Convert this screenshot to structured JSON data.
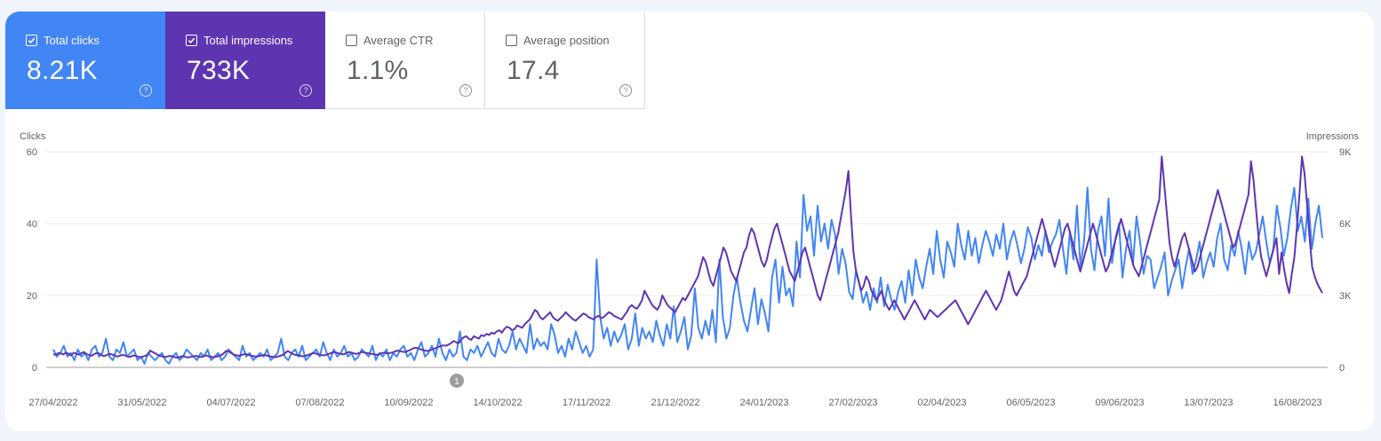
{
  "metrics": [
    {
      "label": "Total clicks",
      "value": "8.21K",
      "checked": true,
      "color": "#4285f4"
    },
    {
      "label": "Total impressions",
      "value": "733K",
      "checked": true,
      "color": "#5e35b1"
    },
    {
      "label": "Average CTR",
      "value": "1.1%",
      "checked": false,
      "color": "#ffffff"
    },
    {
      "label": "Average position",
      "value": "17.4",
      "checked": false,
      "color": "#ffffff"
    }
  ],
  "help_glyph": "?",
  "chart_data": {
    "type": "line",
    "ylabel_left": "Clicks",
    "ylabel_right": "Impressions",
    "y_left_ticks": [
      "0",
      "20",
      "40",
      "60"
    ],
    "y_left_range": [
      0,
      60
    ],
    "y_right_ticks": [
      "0",
      "3K",
      "6K",
      "9K"
    ],
    "y_right_range": [
      0,
      9000
    ],
    "x_ticks": [
      "27/04/2022",
      "31/05/2022",
      "04/07/2022",
      "07/08/2022",
      "10/09/2022",
      "14/10/2022",
      "17/11/2022",
      "21/12/2022",
      "24/01/2023",
      "27/02/2023",
      "02/04/2023",
      "06/05/2023",
      "09/06/2023",
      "13/07/2023",
      "16/08/2023"
    ],
    "annotation": {
      "label": "1",
      "near": "10/09/2022"
    },
    "grid": true,
    "series": [
      {
        "name": "Clicks",
        "axis": "left",
        "color": "#4285f4",
        "values": [
          5,
          3,
          4,
          6,
          3,
          4,
          2,
          5,
          3,
          4,
          2,
          5,
          6,
          3,
          4,
          8,
          3,
          2,
          5,
          4,
          7,
          3,
          4,
          5,
          2,
          3,
          1,
          4,
          3,
          2,
          3,
          4,
          2,
          1,
          3,
          4,
          2,
          3,
          5,
          4,
          3,
          2,
          4,
          3,
          5,
          2,
          3,
          4,
          2,
          3,
          5,
          4,
          3,
          2,
          6,
          3,
          4,
          2,
          3,
          4,
          3,
          5,
          2,
          3,
          4,
          8,
          3,
          2,
          4,
          5,
          3,
          6,
          2,
          3,
          4,
          5,
          3,
          7,
          4,
          2,
          5,
          3,
          4,
          6,
          3,
          4,
          2,
          3,
          5,
          4,
          3,
          6,
          2,
          4,
          3,
          5,
          2,
          4,
          3,
          5,
          6,
          3,
          4,
          2,
          5,
          7,
          3,
          4,
          6,
          3,
          8,
          4,
          2,
          5,
          3,
          4,
          10,
          3,
          2,
          5,
          4,
          6,
          3,
          5,
          7,
          4,
          3,
          8,
          5,
          4,
          6,
          10,
          5,
          8,
          6,
          4,
          12,
          5,
          8,
          6,
          7,
          5,
          12,
          9,
          4,
          6,
          3,
          8,
          5,
          10,
          7,
          4,
          6,
          3,
          5,
          30,
          14,
          8,
          11,
          6,
          10,
          7,
          9,
          12,
          5,
          8,
          15,
          6,
          11,
          8,
          10,
          7,
          13,
          9,
          6,
          12,
          8,
          17,
          7,
          10,
          14,
          5,
          9,
          22,
          11,
          8,
          13,
          9,
          16,
          7,
          30,
          14,
          8,
          11,
          20,
          25,
          18,
          13,
          10,
          16,
          22,
          12,
          19,
          15,
          10,
          25,
          30,
          18,
          28,
          20,
          22,
          17,
          35,
          25,
          48,
          38,
          42,
          31,
          45,
          35,
          40,
          33,
          41,
          37,
          26,
          33,
          29,
          21,
          19,
          27,
          23,
          18,
          21,
          16,
          22,
          18,
          25,
          17,
          23,
          19,
          16,
          21,
          24,
          18,
          27,
          20,
          30,
          25,
          22,
          28,
          33,
          26,
          38,
          30,
          25,
          35,
          32,
          28,
          40,
          34,
          30,
          38,
          31,
          36,
          29,
          34,
          38,
          35,
          31,
          37,
          33,
          40,
          30,
          35,
          38,
          34,
          29,
          33,
          39,
          36,
          30,
          34,
          31,
          38,
          32,
          35,
          37,
          41,
          33,
          26,
          38,
          30,
          45,
          28,
          35,
          50,
          33,
          27,
          38,
          42,
          31,
          47,
          29,
          36,
          40,
          25,
          33,
          38,
          29,
          42,
          35,
          26,
          31,
          30,
          22,
          25,
          28,
          32,
          20,
          24,
          27,
          30,
          22,
          28,
          33,
          26,
          30,
          35,
          25,
          29,
          32,
          28,
          36,
          40,
          30,
          27,
          34,
          31,
          38,
          33,
          26,
          35,
          30,
          32,
          37,
          42,
          35,
          29,
          33,
          45,
          39,
          31,
          36,
          44,
          50,
          38,
          42,
          35,
          47,
          33,
          40,
          45,
          36
        ]
      },
      {
        "name": "Impressions",
        "axis": "right",
        "color": "#5e35b1",
        "values": [
          550,
          520,
          600,
          580,
          540,
          620,
          560,
          500,
          610,
          570,
          530,
          590,
          640,
          560,
          520,
          480,
          550,
          600,
          580,
          500,
          470,
          520,
          560,
          540,
          500,
          450,
          480,
          520,
          500,
          460,
          430,
          480,
          500,
          460,
          420,
          440,
          480,
          520,
          700,
          640,
          580,
          520,
          480,
          450,
          430,
          460,
          480,
          440,
          420,
          400,
          450,
          470,
          430,
          410,
          440,
          460,
          480,
          450,
          430,
          470,
          500,
          460,
          440,
          420,
          450,
          480,
          520,
          600,
          700,
          650,
          580,
          520,
          500,
          480,
          520,
          560,
          540,
          500,
          480,
          460,
          450,
          480,
          500,
          520,
          480,
          460,
          440,
          420,
          450,
          480,
          520,
          600,
          680,
          620,
          560,
          520,
          500,
          480,
          460,
          480,
          520,
          560,
          600,
          580,
          540,
          520,
          500,
          520,
          560,
          600,
          640,
          620,
          580,
          560,
          540,
          600,
          640,
          620,
          580,
          560,
          600,
          640,
          620,
          600,
          580,
          560,
          540,
          520,
          560,
          600,
          620,
          580,
          600,
          620,
          660,
          700,
          680,
          650,
          640,
          680,
          720,
          780,
          820,
          800,
          760,
          720,
          700,
          680,
          720,
          760,
          800,
          850,
          880,
          920,
          900,
          950,
          1000,
          1100,
          1050,
          1000,
          1150,
          1250,
          1300,
          1200,
          1150,
          1300,
          1250,
          1200,
          1350,
          1300,
          1400,
          1350,
          1450,
          1400,
          1500,
          1550,
          1450,
          1600,
          1700,
          1650,
          1550,
          1600,
          1750,
          1700,
          1650,
          1800,
          1900,
          2000,
          2200,
          2400,
          2300,
          2100,
          2000,
          2100,
          2200,
          2300,
          2100,
          2000,
          1950,
          2050,
          2150,
          2300,
          2200,
          2100,
          2000,
          1950,
          2050,
          2150,
          2250,
          2200,
          2100,
          2050,
          2000,
          2100,
          2150,
          2050,
          2100,
          2200,
          2300,
          2250,
          2150,
          2100,
          2050,
          2000,
          2150,
          2300,
          2500,
          2600,
          2500,
          2450,
          2600,
          2800,
          3200,
          3000,
          2800,
          2600,
          2500,
          2400,
          2600,
          3000,
          2800,
          2600,
          2500,
          2400,
          2300,
          2500,
          2700,
          2900,
          2800,
          3000,
          3200,
          3400,
          3600,
          3800,
          4200,
          4600,
          4400,
          4000,
          3600,
          3400,
          3800,
          4200,
          4600,
          5000,
          4800,
          4400,
          4000,
          3800,
          3600,
          4000,
          4400,
          4800,
          5000,
          5500,
          5800,
          5600,
          5200,
          4800,
          4400,
          4200,
          4500,
          5000,
          5400,
          5800,
          6000,
          5600,
          5200,
          4800,
          4400,
          4000,
          3800,
          3600,
          4000,
          4400,
          4800,
          5000,
          4600,
          4200,
          3800,
          3400,
          3000,
          2800,
          3200,
          3600,
          4000,
          4400,
          4800,
          5200,
          5600,
          6200,
          6800,
          7400,
          8200,
          6400,
          4800,
          4000,
          3600,
          3200,
          3400,
          3800,
          3600,
          3200,
          3000,
          2800,
          3000,
          3200,
          2800,
          2600,
          2400,
          2600,
          2800,
          2600,
          2400,
          2200,
          2000,
          2200,
          2400,
          2600,
          2800,
          2600,
          2400,
          2200,
          2000,
          2200,
          2400,
          2300,
          2200,
          2100,
          2200,
          2300,
          2400,
          2500,
          2600,
          2700,
          2800,
          2600,
          2400,
          2200,
          2000,
          1800,
          2000,
          2200,
          2400,
          2600,
          2800,
          3000,
          3200,
          3000,
          2800,
          2600,
          2400,
          2600,
          2800,
          3200,
          3600,
          4000,
          3600,
          3200,
          3000,
          3200,
          3400,
          3600,
          3800,
          4200,
          4600,
          5000,
          5400,
          5800,
          6200,
          5800,
          5400,
          5000,
          4600,
          4200,
          4600,
          5000,
          5400,
          5800,
          6000,
          5600,
          5200,
          4800,
          4400,
          4000,
          4400,
          4800,
          5200,
          5600,
          6000,
          5600,
          5200,
          4800,
          4400,
          4000,
          4200,
          4600,
          5000,
          5400,
          5800,
          6200,
          5800,
          5400,
          5000,
          4600,
          4200,
          4000,
          3800,
          4200,
          4600,
          5000,
          5400,
          5800,
          6200,
          6600,
          7000,
          8800,
          7600,
          6400,
          5200,
          4600,
          4200,
          4600,
          5000,
          5400,
          5600,
          5200,
          4800,
          4400,
          4000,
          4200,
          4600,
          5000,
          5400,
          5800,
          6200,
          6600,
          7000,
          7400,
          7000,
          6600,
          6200,
          5800,
          5400,
          5000,
          5200,
          5600,
          6000,
          6400,
          6800,
          7200,
          8600,
          7800,
          6600,
          5400,
          4600,
          4200,
          3800,
          4200,
          4600,
          5000,
          5400,
          3900,
          4800,
          4100,
          3500,
          3100,
          3900,
          4600,
          5800,
          7200,
          8800,
          8100,
          6800,
          5400,
          4200,
          3800,
          3500,
          3300,
          3100
        ]
      }
    ]
  }
}
